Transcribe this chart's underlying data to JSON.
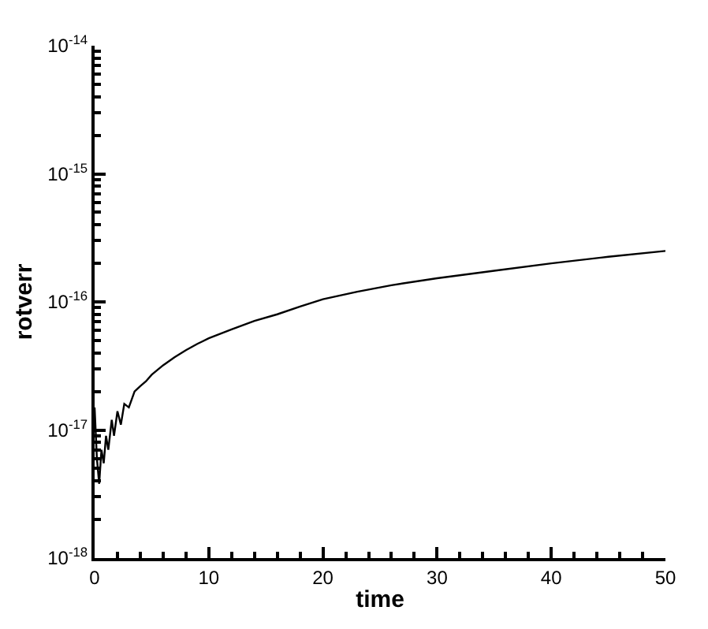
{
  "chart_data": {
    "type": "line",
    "xlabel": "time",
    "ylabel": "rotverr",
    "x": [
      0,
      0.2,
      0.4,
      0.6,
      0.8,
      1.0,
      1.2,
      1.5,
      1.7,
      2.0,
      2.3,
      2.6,
      3.0,
      3.5,
      4,
      4.5,
      5,
      6,
      7,
      8,
      9,
      10,
      12,
      14,
      16,
      18,
      20,
      23,
      26,
      30,
      35,
      40,
      45,
      50
    ],
    "series": [
      {
        "color": "#000000",
        "values": [
          1.5e-17,
          6e-18,
          3.8e-18,
          7e-18,
          5.5e-18,
          9e-18,
          7e-18,
          1.2e-17,
          9e-18,
          1.4e-17,
          1.1e-17,
          1.6e-17,
          1.5e-17,
          2e-17,
          2.2e-17,
          2.4e-17,
          2.7e-17,
          3.2e-17,
          3.7e-17,
          4.2e-17,
          4.7e-17,
          5.2e-17,
          6.1e-17,
          7.1e-17,
          8e-17,
          9.2e-17,
          1.05e-16,
          1.2e-16,
          1.35e-16,
          1.53e-16,
          1.75e-16,
          2e-16,
          2.25e-16,
          2.5e-16
        ]
      }
    ],
    "log": "y",
    "xlim": [
      0,
      50
    ],
    "xticks": [
      0,
      10,
      20,
      30,
      40,
      50
    ],
    "ylim": [
      1e-18,
      1e-14
    ],
    "yticks": [
      {
        "value": 1e-18,
        "label": "10$^{-18}$"
      },
      {
        "value": 1e-17,
        "label": "10$^{-17}$"
      },
      {
        "value": 1e-16,
        "label": "10$^{-16}$"
      },
      {
        "value": 1e-15,
        "label": "10$^{-15}$"
      },
      {
        "value": 1e-14,
        "label": "10$^{-14}$"
      }
    ],
    "marker": "none",
    "line_style": "solid"
  }
}
